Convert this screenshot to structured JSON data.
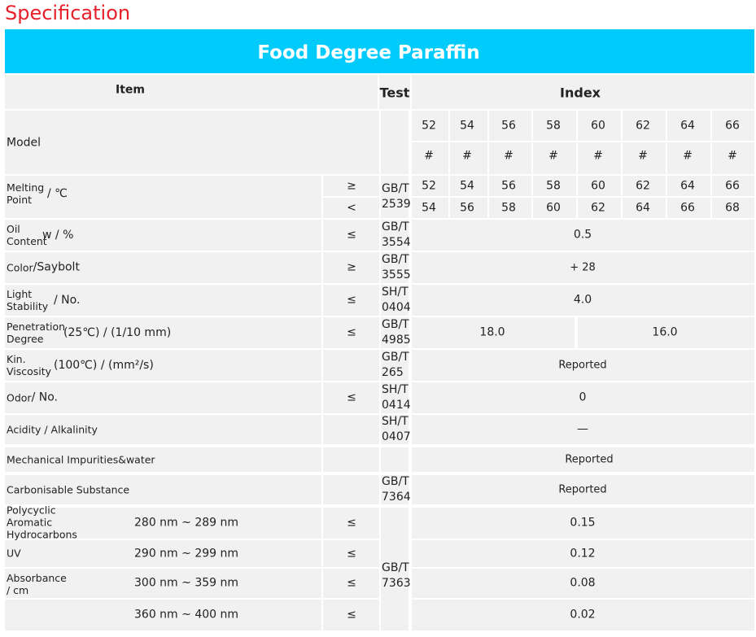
{
  "heading": "Specification",
  "banner": "Food Degree Paraffin",
  "header": {
    "item": "Item",
    "test": "Test",
    "index": "Index"
  },
  "model": {
    "label": "Model",
    "grades": [
      "52",
      "54",
      "56",
      "58",
      "60",
      "62",
      "64",
      "66"
    ],
    "marks": [
      "#",
      "#",
      "#",
      "#",
      "#",
      "#",
      "#",
      "#"
    ]
  },
  "melting_point": {
    "label": "Melting Point",
    "unit": "/ ℃",
    "signs": [
      "≥",
      "<"
    ],
    "test": "GB/T 2539",
    "min": [
      "52",
      "54",
      "56",
      "58",
      "60",
      "62",
      "64",
      "66"
    ],
    "max": [
      "54",
      "56",
      "58",
      "60",
      "62",
      "64",
      "66",
      "68"
    ]
  },
  "rows": [
    {
      "label": "Oil Content",
      "unit": "w / %",
      "sign": "≤",
      "test": "GB/T 3554",
      "value": "0.5"
    },
    {
      "label": "Color",
      "unit": "/Saybolt",
      "sign": "≥",
      "test": "GB/T 3555",
      "value": "+ 28"
    },
    {
      "label": "Light Stability",
      "unit": "/ No.",
      "sign": "≤",
      "test": "SH/T 0404",
      "value": "4.0"
    },
    {
      "label": "Penetration Degree",
      "unit": "(25℃) / (1/10 mm)",
      "sign": "≤",
      "test": "GB/T 4985",
      "values": [
        "18.0",
        "16.0"
      ]
    },
    {
      "label": "Kin. Viscosity",
      "unit": "(100℃) / (mm²/s)",
      "test": "GB/T 265",
      "value": "Reported"
    },
    {
      "label": "Odor",
      "unit": "/ No.",
      "sign": "≤",
      "test": "SH/T 0414",
      "value": "0"
    },
    {
      "label": "Acidity / Alkalinity",
      "test": "SH/T 0407",
      "value": "—"
    },
    {
      "label": "Mechanical Impurities&water",
      "value": "Reported"
    },
    {
      "label": "Carbonisable Substance",
      "test": "GB/T 7364",
      "value": "Reported"
    }
  ],
  "pah": {
    "labels": [
      "Polycyclic Aromatic Hydrocarbons",
      "UV",
      "Absorbance / cm"
    ],
    "test": "GB/T 7363",
    "ranges": [
      {
        "range": "280 nm ~ 289 nm",
        "sign": "≤",
        "value": "0.15"
      },
      {
        "range": "290 nm ~ 299 nm",
        "sign": "≤",
        "value": "0.12"
      },
      {
        "range": "300 nm ~ 359 nm",
        "sign": "≤",
        "value": "0.08"
      },
      {
        "range": "360 nm ~ 400 nm",
        "sign": "≤",
        "value": "0.02"
      }
    ]
  }
}
